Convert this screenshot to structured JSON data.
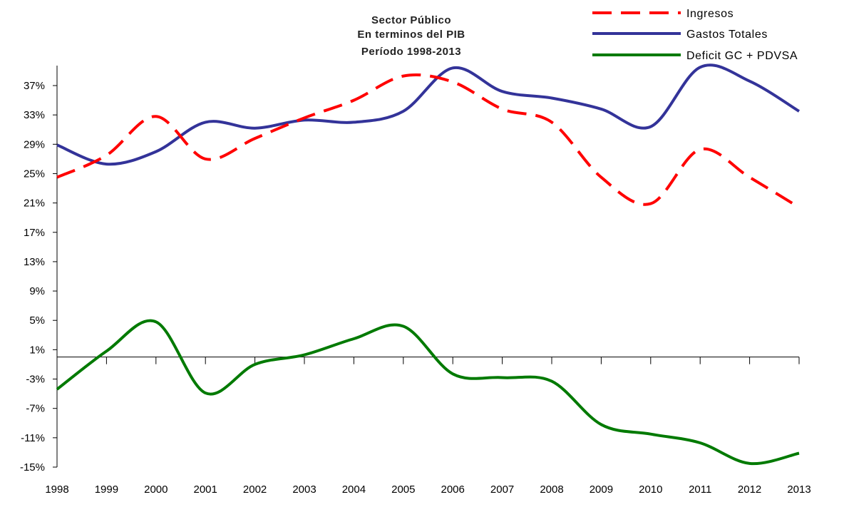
{
  "chart_data": {
    "type": "line",
    "title": [
      "Sector Público",
      "En terminos del PIB",
      "Período 1998-2013"
    ],
    "xlabel": "",
    "ylabel": "",
    "x": [
      "1998",
      "1999",
      "2000",
      "2001",
      "2002",
      "2003",
      "2004",
      "2005",
      "2006",
      "2007",
      "2008",
      "2009",
      "2010",
      "2011",
      "2012",
      "2013"
    ],
    "ylim": [
      -15,
      39.4
    ],
    "yticks": [
      37,
      33,
      29,
      25,
      21,
      17,
      13,
      9,
      5,
      1,
      -3,
      -7,
      -11,
      -15
    ],
    "ytick_labels": [
      "37%",
      "33%",
      "29%",
      "25%",
      "21%",
      "17%",
      "13%",
      "9%",
      "5%",
      "1%",
      "-3%",
      "-7%",
      "-11%",
      "-15%"
    ],
    "zero_line": 0,
    "legend_position": "top-right",
    "series": [
      {
        "name": "Ingresos",
        "color": "#ff0000",
        "dash": "dashed",
        "values": [
          24.5,
          27.5,
          32.8,
          27.0,
          29.8,
          32.6,
          35.0,
          38.3,
          37.5,
          33.8,
          32.0,
          24.5,
          20.9,
          28.3,
          24.5,
          20.4
        ]
      },
      {
        "name": "Gastos Totales",
        "color": "#333399",
        "dash": "solid",
        "values": [
          28.9,
          26.3,
          28.0,
          32.0,
          31.2,
          32.3,
          32.0,
          33.5,
          39.4,
          36.2,
          35.3,
          33.8,
          31.4,
          39.5,
          37.6,
          33.5
        ]
      },
      {
        "name": "Deficit GC + PDVSA",
        "color": "#007a00",
        "dash": "solid",
        "values": [
          -4.4,
          0.8,
          4.8,
          -4.9,
          -1.0,
          0.3,
          2.5,
          4.2,
          -2.3,
          -2.8,
          -3.3,
          -9.2,
          -10.5,
          -11.7,
          -14.5,
          -13.1
        ]
      }
    ]
  }
}
